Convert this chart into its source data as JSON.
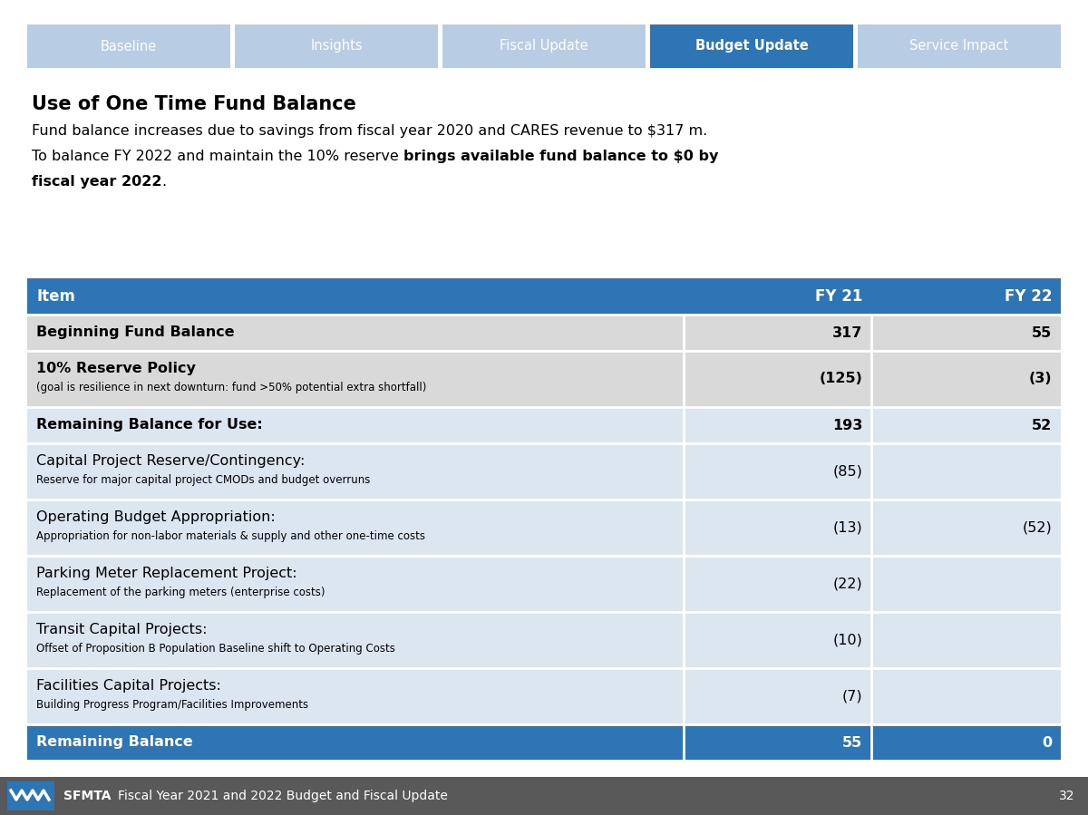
{
  "nav_tabs": [
    "Baseline",
    "Insights",
    "Fiscal Update",
    "Budget Update",
    "Service Impact"
  ],
  "nav_active": 3,
  "nav_tab_color_inactive": "#b8cce4",
  "nav_tab_color_active": "#2e75b6",
  "nav_text_color": "#ffffff",
  "title_bold": "Use of One Time Fund Balance",
  "sub1": "Fund balance increases due to savings from fiscal year 2020 and CARES revenue to $317 m.",
  "sub2_normal": "To balance FY 2022 and maintain the 10% reserve ",
  "sub2_bold": "brings available fund balance to $0 by",
  "sub3_bold": "fiscal year 2022",
  "sub3_normal": ".",
  "header_bg": "#2e75b6",
  "header_text_color": "#ffffff",
  "col_headers": [
    "Item",
    "FY 21",
    "FY 22"
  ],
  "rows": [
    {
      "item": "Beginning Fund Balance",
      "item_sub": "",
      "fy21": "317",
      "fy22": "55",
      "bold": true,
      "bg": "#d9d9d9",
      "text_color": "#000000"
    },
    {
      "item": "10% Reserve Policy",
      "item_sub": "(goal is resilience in next downturn: fund >50% potential extra shortfall)",
      "fy21": "(125)",
      "fy22": "(3)",
      "bold": true,
      "bg": "#d9d9d9",
      "text_color": "#000000"
    },
    {
      "item": "Remaining Balance for Use:",
      "item_sub": "",
      "fy21": "193",
      "fy22": "52",
      "bold": true,
      "bg": "#dce6f1",
      "text_color": "#000000"
    },
    {
      "item": "Capital Project Reserve/Contingency:",
      "item_sub": "Reserve for major capital project CMODs and budget overruns",
      "fy21": "(85)",
      "fy22": "",
      "bold": false,
      "bg": "#dce6f1",
      "text_color": "#000000"
    },
    {
      "item": "Operating Budget Appropriation:",
      "item_sub": "Appropriation for non-labor materials & supply and other one-time costs",
      "fy21": "(13)",
      "fy22": "(52)",
      "bold": false,
      "bg": "#dce6f1",
      "text_color": "#000000"
    },
    {
      "item": "Parking Meter Replacement Project:",
      "item_sub": "Replacement of the parking meters (enterprise costs)",
      "fy21": "(22)",
      "fy22": "",
      "bold": false,
      "bg": "#dce6f1",
      "text_color": "#000000"
    },
    {
      "item": "Transit Capital Projects:",
      "item_sub": "Offset of Proposition B Population Baseline shift to Operating Costs",
      "fy21": "(10)",
      "fy22": "",
      "bold": false,
      "bg": "#dce6f1",
      "text_color": "#000000"
    },
    {
      "item": "Facilities Capital Projects:",
      "item_sub": "Building Progress Program/Facilities Improvements",
      "fy21": "(7)",
      "fy22": "",
      "bold": false,
      "bg": "#dce6f1",
      "text_color": "#000000"
    },
    {
      "item": "Remaining Balance",
      "item_sub": "",
      "fy21": "55",
      "fy22": "0",
      "bold": true,
      "bg": "#2e75b6",
      "text_color": "#ffffff"
    }
  ],
  "footer_bg": "#595959",
  "footer_text": "Fiscal Year 2021 and 2022 Budget and Fiscal Update",
  "footer_page": "32",
  "bg_color": "#ffffff"
}
